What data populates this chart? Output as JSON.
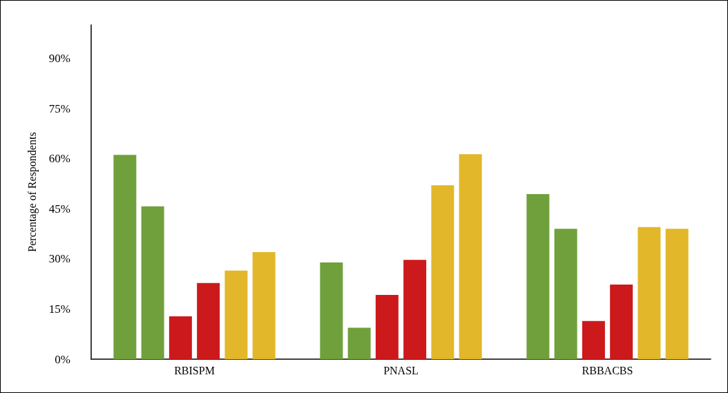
{
  "chart_data": {
    "type": "bar",
    "ylabel": "Percentage of Respondents",
    "categories": [
      "RBISPM",
      "PNASL",
      "RBBACBS"
    ],
    "series": [
      {
        "color": "#70a03c",
        "values": [
          61.1,
          28.9,
          49.4
        ]
      },
      {
        "color": "#70a03c",
        "values": [
          45.7,
          9.4,
          39.0
        ]
      },
      {
        "color": "#cc1a1c",
        "values": [
          12.8,
          19.2,
          11.4
        ]
      },
      {
        "color": "#cc1a1c",
        "values": [
          22.8,
          29.7,
          22.3
        ]
      },
      {
        "color": "#e2b72a",
        "values": [
          26.5,
          52.0,
          39.5
        ]
      },
      {
        "color": "#e2b72a",
        "values": [
          32.0,
          61.3,
          39.0
        ]
      }
    ],
    "ylim": [
      0,
      100
    ],
    "yticks": [
      {
        "value": 0,
        "label": "0%"
      },
      {
        "value": 15,
        "label": "15%"
      },
      {
        "value": 30,
        "label": "30%"
      },
      {
        "value": 45,
        "label": "45%"
      },
      {
        "value": 60,
        "label": "60%"
      },
      {
        "value": 75,
        "label": "75%"
      },
      {
        "value": 90,
        "label": "90%"
      }
    ],
    "grid": false
  }
}
